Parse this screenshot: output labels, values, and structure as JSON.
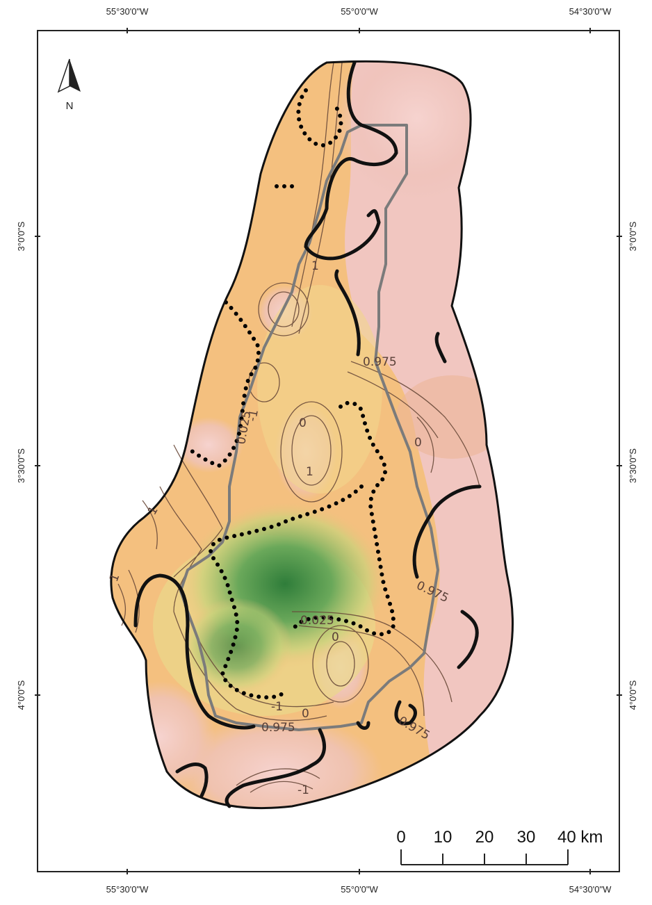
{
  "map": {
    "coordinates": {
      "top": [
        "55°30'0\"W",
        "55°0'0\"W",
        "54°30'0\"W"
      ],
      "bottom": [
        "55°30'0\"W",
        "55°0'0\"W",
        "54°30'0\"W"
      ],
      "left": [
        "3°0'0\"S",
        "3°30'0\"S",
        "4°0'0\"S"
      ],
      "right": [
        "3°0'0\"S",
        "3°30'0\"S",
        "4°0'0\"S"
      ]
    },
    "north_arrow": {
      "label": "N"
    },
    "contour_labels": [
      "1",
      "0.975",
      "0.025",
      "-1",
      "0",
      "1",
      "0",
      "0.975",
      "0.025",
      "0",
      "-1",
      "0",
      "0.975",
      "0.975",
      "-1",
      "1",
      "1"
    ],
    "scale_bar": {
      "ticks": [
        "0",
        "10",
        "20",
        "30",
        "40 km"
      ]
    },
    "colors": {
      "high": "#f2c9c4",
      "mid": "#f4c07f",
      "low": "#3f8b45",
      "boundary_line": "#7b7b7b",
      "contour_line": "#6a4a3a",
      "outline": "#111111"
    }
  }
}
